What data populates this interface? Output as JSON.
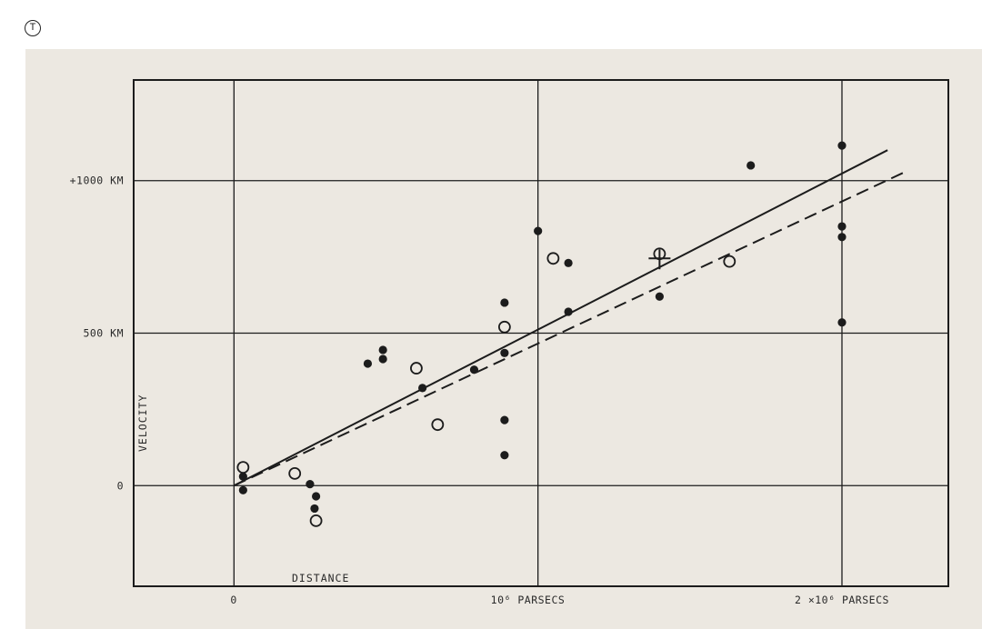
{
  "figure": {
    "badge": "T"
  },
  "chart_data": {
    "type": "scatter",
    "title": "",
    "xlabel": "DISTANCE",
    "ylabel": "VELOCITY",
    "x_units": "parsecs",
    "y_units": "km/s",
    "xlim": [
      -330000.0,
      2350000.0
    ],
    "ylim": [
      -330,
      1330
    ],
    "x_ticks": [
      {
        "value": 0,
        "label": "0"
      },
      {
        "value": 1000000,
        "label": "10⁶ PARSECS"
      },
      {
        "value": 2000000,
        "label": "2 ×10⁶ PARSECS"
      }
    ],
    "y_ticks": [
      {
        "value": 0,
        "label": "0"
      },
      {
        "value": 500,
        "label": "500 KM"
      },
      {
        "value": 1000,
        "label": "+1000 KM"
      }
    ],
    "grid": true,
    "series": [
      {
        "marker": "filled-circle",
        "points": [
          [
            30000,
            30
          ],
          [
            30000,
            -15
          ],
          [
            250000,
            5
          ],
          [
            270000,
            -35
          ],
          [
            265000,
            -75
          ],
          [
            440000,
            400
          ],
          [
            490000,
            445
          ],
          [
            490000,
            415
          ],
          [
            620000,
            320
          ],
          [
            790000,
            380
          ],
          [
            890000,
            600
          ],
          [
            890000,
            435
          ],
          [
            890000,
            215
          ],
          [
            890000,
            100
          ],
          [
            1000000,
            835
          ],
          [
            1100000,
            730
          ],
          [
            1100000,
            570
          ],
          [
            1400000,
            620
          ],
          [
            1400000,
            755
          ],
          [
            1700000,
            1050
          ],
          [
            2000000,
            1115
          ],
          [
            2000000,
            850
          ],
          [
            2000000,
            815
          ],
          [
            2000000,
            535
          ]
        ]
      },
      {
        "marker": "open-circle",
        "points": [
          [
            30000,
            60
          ],
          [
            200000,
            40
          ],
          [
            270000,
            -115
          ],
          [
            600000,
            385
          ],
          [
            670000,
            200
          ],
          [
            890000,
            520
          ],
          [
            1050000,
            745
          ],
          [
            1400000,
            760
          ],
          [
            1630000,
            735
          ]
        ]
      },
      {
        "marker": "cross",
        "points": [
          [
            1400000,
            745
          ]
        ]
      }
    ],
    "lines": [
      {
        "style": "solid",
        "from": [
          0,
          0
        ],
        "to": [
          2150000,
          1100
        ]
      },
      {
        "style": "dashed",
        "from": [
          0,
          0
        ],
        "to": [
          2200000,
          1025
        ]
      }
    ]
  }
}
